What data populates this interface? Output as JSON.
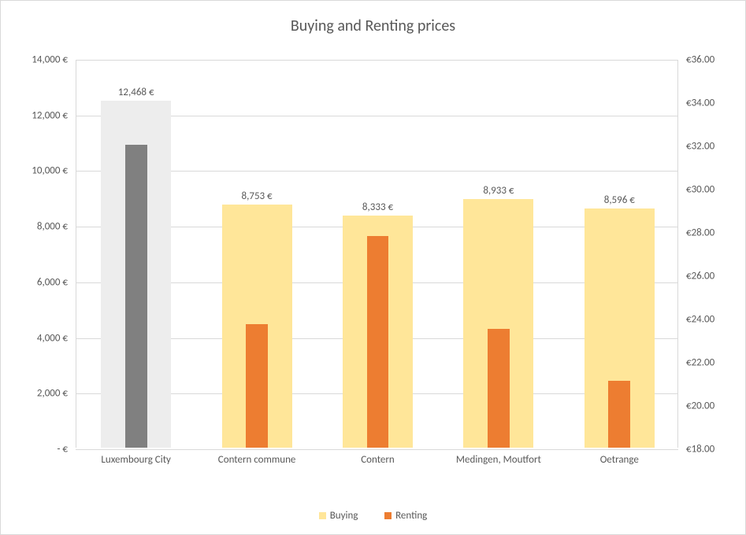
{
  "chart": {
    "type": "bar",
    "title": "Buying and Renting prices",
    "title_fontsize": 20,
    "title_color": "#595959",
    "background_color": "#ffffff",
    "border_color": "#d9d9d9",
    "grid_color": "#d9d9d9",
    "text_color": "#595959",
    "label_fontsize": 13,
    "categories": [
      "Luxembourg City",
      "Contern commune",
      "Contern",
      "Medingen, Moutfort",
      "Oetrange"
    ],
    "series": {
      "buying": {
        "label": "Buying",
        "values": [
          12468,
          8753,
          8333,
          8933,
          8596
        ],
        "colors": [
          "#ededed",
          "#ffe699",
          "#ffe699",
          "#ffe699",
          "#ffe699"
        ],
        "data_labels": [
          "12,468 €",
          "8,753 €",
          "8,333 €",
          "8,933 €",
          "8,596 €"
        ],
        "axis": "left",
        "bar_width_ratio": 0.58
      },
      "renting": {
        "label": "Renting",
        "values": [
          32.0,
          23.7,
          27.8,
          23.5,
          21.1
        ],
        "colors": [
          "#808080",
          "#ed7d31",
          "#ed7d31",
          "#ed7d31",
          "#ed7d31"
        ],
        "axis": "right",
        "bar_width_ratio": 0.18
      }
    },
    "y_left": {
      "min": 0,
      "max": 14000,
      "step": 2000,
      "ticks": [
        " -   € ",
        " 2,000 € ",
        " 4,000 € ",
        " 6,000 € ",
        " 8,000 € ",
        " 10,000 € ",
        " 12,000 € ",
        " 14,000 € "
      ]
    },
    "y_right": {
      "min": 18,
      "max": 36,
      "step": 2,
      "ticks": [
        "€18.00",
        "€20.00",
        "€22.00",
        "€24.00",
        "€26.00",
        "€28.00",
        "€30.00",
        "€32.00",
        "€34.00",
        "€36.00"
      ]
    },
    "legend": {
      "position": "bottom",
      "buying_swatch": "#ffe699",
      "renting_swatch": "#ed7d31"
    }
  }
}
